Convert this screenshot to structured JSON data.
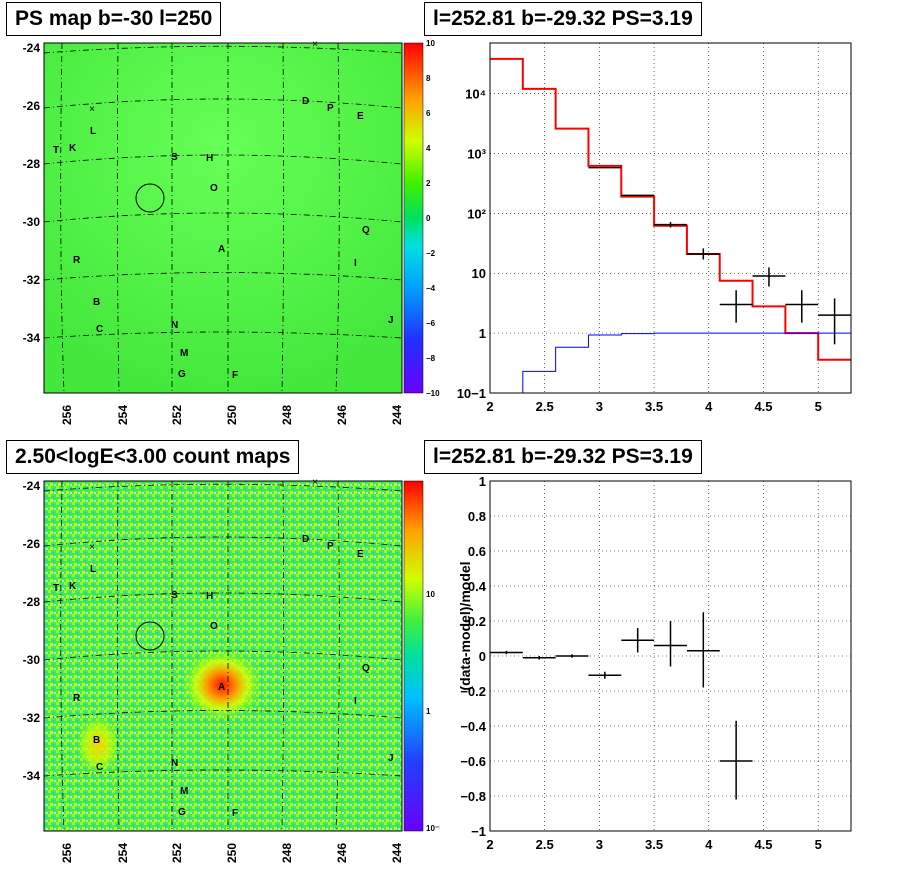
{
  "panels": {
    "ps_map": {
      "title": "PS map b=-30 l=250"
    },
    "spectrum": {
      "title": "l=252.81 b=-29.32 PS=3.19"
    },
    "count_map": {
      "title": "2.50<logE<3.00 count maps"
    },
    "residual": {
      "title": "l=252.81 b=-29.32 PS=3.19",
      "ylabel": "(data-model)/model"
    }
  },
  "map_axes": {
    "x_ticks": [
      "256",
      "254",
      "252",
      "250",
      "248",
      "246",
      "244"
    ],
    "y_ticks": [
      "-24",
      "-26",
      "-28",
      "-30",
      "-32",
      "-34"
    ]
  },
  "map_sources": [
    {
      "label": "D"
    },
    {
      "label": "P"
    },
    {
      "label": "E"
    },
    {
      "label": "L"
    },
    {
      "label": "T"
    },
    {
      "label": "K"
    },
    {
      "label": "S"
    },
    {
      "label": "H"
    },
    {
      "label": "O"
    },
    {
      "label": "Q"
    },
    {
      "label": "A"
    },
    {
      "label": "R"
    },
    {
      "label": "I"
    },
    {
      "label": "B"
    },
    {
      "label": "C"
    },
    {
      "label": "N"
    },
    {
      "label": "J"
    },
    {
      "label": "M"
    },
    {
      "label": "G"
    },
    {
      "label": "F"
    }
  ],
  "ps_colorbar": {
    "ticks": [
      "10",
      "8",
      "6",
      "4",
      "2",
      "0",
      "−2",
      "−4",
      "−6",
      "−8",
      "−10"
    ]
  },
  "count_colorbar": {
    "ticks": [
      "10",
      "1",
      "10⁻¹"
    ]
  },
  "chart_data": [
    {
      "type": "line",
      "title": "l=252.81 b=-29.32 PS=3.19",
      "log_y": true,
      "xlim": [
        2,
        5.3
      ],
      "ylim": [
        0.1,
        70000
      ],
      "x_ticks": [
        "2",
        "2.5",
        "3",
        "3.5",
        "4",
        "4.5",
        "5"
      ],
      "y_ticks": [
        "10−1",
        "1",
        "10",
        "10²",
        "10³",
        "10⁴"
      ],
      "grid": true,
      "series": [
        {
          "color": "#ff0000",
          "bins": [
            [
              2.0,
              2.3,
              38000
            ],
            [
              2.3,
              2.6,
              12000
            ],
            [
              2.6,
              2.9,
              2600
            ],
            [
              2.9,
              3.2,
              620
            ],
            [
              3.2,
              3.5,
              190
            ],
            [
              3.5,
              3.8,
              62
            ],
            [
              3.8,
              4.1,
              21
            ],
            [
              4.1,
              4.4,
              7.5
            ],
            [
              4.4,
              4.7,
              2.8
            ],
            [
              4.7,
              5.0,
              1.0
            ],
            [
              5.0,
              5.3,
              0.36
            ]
          ]
        },
        {
          "color": "#0000ff",
          "bins": [
            [
              2.0,
              2.3,
              0.001
            ],
            [
              2.3,
              2.6,
              0.23
            ],
            [
              2.6,
              2.9,
              0.58
            ],
            [
              2.9,
              3.2,
              0.93
            ],
            [
              3.2,
              3.5,
              0.98
            ],
            [
              3.5,
              3.8,
              1.0
            ],
            [
              3.8,
              4.1,
              1.0
            ],
            [
              4.1,
              4.4,
              1.0
            ],
            [
              4.4,
              4.7,
              1.0
            ],
            [
              4.7,
              5.0,
              1.0
            ],
            [
              5.0,
              5.3,
              1.0
            ]
          ]
        }
      ],
      "points": [
        {
          "x": 3.05,
          "y": 580,
          "xerr": 0.15,
          "ylo": 580,
          "yhi": 580
        },
        {
          "x": 3.35,
          "y": 200,
          "xerr": 0.15,
          "ylo": 200,
          "yhi": 200
        },
        {
          "x": 3.65,
          "y": 65,
          "xerr": 0.15,
          "ylo": 58,
          "yhi": 72
        },
        {
          "x": 3.95,
          "y": 21,
          "xerr": 0.15,
          "ylo": 17,
          "yhi": 26
        },
        {
          "x": 4.25,
          "y": 3.0,
          "xerr": 0.15,
          "ylo": 1.5,
          "yhi": 5.2
        },
        {
          "x": 4.55,
          "y": 9.0,
          "xerr": 0.15,
          "ylo": 6.0,
          "yhi": 12.5
        },
        {
          "x": 4.85,
          "y": 3.0,
          "xerr": 0.15,
          "ylo": 1.5,
          "yhi": 5.2
        },
        {
          "x": 5.15,
          "y": 2.0,
          "xerr": 0.15,
          "ylo": 0.65,
          "yhi": 3.8
        }
      ]
    },
    {
      "type": "scatter",
      "title": "l=252.81 b=-29.32 PS=3.19",
      "xlim": [
        2,
        5.3
      ],
      "ylim": [
        -1,
        1
      ],
      "x_ticks": [
        "2",
        "2.5",
        "3",
        "3.5",
        "4",
        "4.5",
        "5"
      ],
      "y_ticks": [
        "−1",
        "−0.8",
        "−0.6",
        "−0.4",
        "−0.2",
        "0",
        "0.2",
        "0.4",
        "0.6",
        "0.8",
        "1"
      ],
      "y_tick_values": [
        -1,
        -0.8,
        -0.6,
        -0.4,
        -0.2,
        0,
        0.2,
        0.4,
        0.6,
        0.8,
        1
      ],
      "ylabel": "(data-model)/model",
      "grid": true,
      "points": [
        {
          "x": 2.15,
          "y": 0.02,
          "xerr": 0.15,
          "ylo": 0.01,
          "yhi": 0.03
        },
        {
          "x": 2.45,
          "y": -0.01,
          "xerr": 0.15,
          "ylo": -0.02,
          "yhi": 0.0
        },
        {
          "x": 2.75,
          "y": 0.0,
          "xerr": 0.15,
          "ylo": -0.01,
          "yhi": 0.01
        },
        {
          "x": 3.05,
          "y": -0.11,
          "xerr": 0.15,
          "ylo": -0.13,
          "yhi": -0.09
        },
        {
          "x": 3.35,
          "y": 0.09,
          "xerr": 0.15,
          "ylo": 0.02,
          "yhi": 0.16
        },
        {
          "x": 3.65,
          "y": 0.06,
          "xerr": 0.15,
          "ylo": -0.06,
          "yhi": 0.2
        },
        {
          "x": 3.95,
          "y": 0.03,
          "xerr": 0.15,
          "ylo": -0.18,
          "yhi": 0.25
        },
        {
          "x": 4.25,
          "y": -0.6,
          "xerr": 0.15,
          "ylo": -0.82,
          "yhi": -0.37
        }
      ]
    }
  ]
}
